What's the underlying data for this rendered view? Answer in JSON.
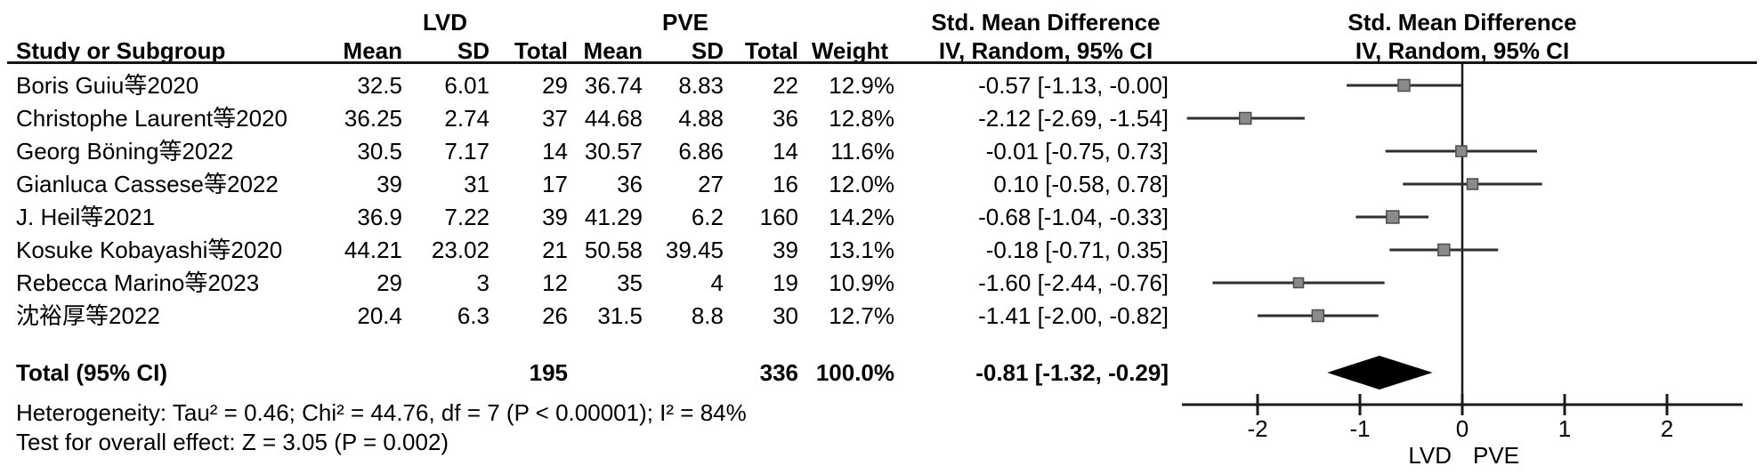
{
  "headers": {
    "group_lvd": "LVD",
    "group_pve": "PVE",
    "smd_left": "Std. Mean Difference",
    "smd_right": "Std. Mean Difference",
    "method_left": "IV, Random, 95% CI",
    "method_right": "IV, Random, 95% CI"
  },
  "columns": {
    "study": "Study or Subgroup",
    "mean": "Mean",
    "sd": "SD",
    "total": "Total",
    "weight": "Weight"
  },
  "table": {
    "rows": [
      {
        "study": "Boris Guiu等2020",
        "lvd_mean": "32.5",
        "lvd_sd": "6.01",
        "lvd_total": "29",
        "pve_mean": "36.74",
        "pve_sd": "8.83",
        "pve_total": "22",
        "weight": "12.9%",
        "ci_text": "-0.57 [-1.13, -0.00]"
      },
      {
        "study": "Christophe Laurent等2020",
        "lvd_mean": "36.25",
        "lvd_sd": "2.74",
        "lvd_total": "37",
        "pve_mean": "44.68",
        "pve_sd": "4.88",
        "pve_total": "36",
        "weight": "12.8%",
        "ci_text": "-2.12 [-2.69, -1.54]"
      },
      {
        "study": "Georg Böning等2022",
        "lvd_mean": "30.5",
        "lvd_sd": "7.17",
        "lvd_total": "14",
        "pve_mean": "30.57",
        "pve_sd": "6.86",
        "pve_total": "14",
        "weight": "11.6%",
        "ci_text": "-0.01 [-0.75, 0.73]"
      },
      {
        "study": "Gianluca Cassese等2022",
        "lvd_mean": "39",
        "lvd_sd": "31",
        "lvd_total": "17",
        "pve_mean": "36",
        "pve_sd": "27",
        "pve_total": "16",
        "weight": "12.0%",
        "ci_text": "0.10 [-0.58, 0.78]"
      },
      {
        "study": "J. Heil等2021",
        "lvd_mean": "36.9",
        "lvd_sd": "7.22",
        "lvd_total": "39",
        "pve_mean": "41.29",
        "pve_sd": "6.2",
        "pve_total": "160",
        "weight": "14.2%",
        "ci_text": "-0.68 [-1.04, -0.33]"
      },
      {
        "study": "Kosuke Kobayashi等2020",
        "lvd_mean": "44.21",
        "lvd_sd": "23.02",
        "lvd_total": "21",
        "pve_mean": "50.58",
        "pve_sd": "39.45",
        "pve_total": "39",
        "weight": "13.1%",
        "ci_text": "-0.18 [-0.71, 0.35]"
      },
      {
        "study": "Rebecca Marino等2023",
        "lvd_mean": "29",
        "lvd_sd": "3",
        "lvd_total": "12",
        "pve_mean": "35",
        "pve_sd": "4",
        "pve_total": "19",
        "weight": "10.9%",
        "ci_text": "-1.60 [-2.44, -0.76]"
      },
      {
        "study": "沈裕厚等2022",
        "lvd_mean": "20.4",
        "lvd_sd": "6.3",
        "lvd_total": "26",
        "pve_mean": "31.5",
        "pve_sd": "8.8",
        "pve_total": "30",
        "weight": "12.7%",
        "ci_text": "-1.41 [-2.00, -0.82]"
      }
    ],
    "total": {
      "label": "Total (95% CI)",
      "lvd_total": "195",
      "pve_total": "336",
      "weight": "100.0%",
      "ci_text": "-0.81 [-1.32, -0.29]"
    },
    "heterogeneity": "Heterogeneity: Tau² = 0.46; Chi² = 44.76, df = 7 (P < 0.00001); I² = 84%",
    "overall_effect": "Test for overall effect: Z = 3.05 (P = 0.002)"
  },
  "chart_data": {
    "type": "forest",
    "title": "Std. Mean Difference",
    "method": "IV, Random, 95% CI",
    "x_ticks": [
      -2,
      -1,
      0,
      1,
      2
    ],
    "xlim": [
      -2.75,
      2.75
    ],
    "favours_labels": {
      "left": "LVD",
      "right": "PVE"
    },
    "studies": [
      {
        "name": "Boris Guiu等2020",
        "estimate": -0.57,
        "ci_low": -1.13,
        "ci_high": 0.0,
        "weight_pct": 12.9
      },
      {
        "name": "Christophe Laurent等2020",
        "estimate": -2.12,
        "ci_low": -2.69,
        "ci_high": -1.54,
        "weight_pct": 12.8
      },
      {
        "name": "Georg Böning等2022",
        "estimate": -0.01,
        "ci_low": -0.75,
        "ci_high": 0.73,
        "weight_pct": 11.6
      },
      {
        "name": "Gianluca Cassese等2022",
        "estimate": 0.1,
        "ci_low": -0.58,
        "ci_high": 0.78,
        "weight_pct": 12.0
      },
      {
        "name": "J. Heil等2021",
        "estimate": -0.68,
        "ci_low": -1.04,
        "ci_high": -0.33,
        "weight_pct": 14.2
      },
      {
        "name": "Kosuke Kobayashi等2020",
        "estimate": -0.18,
        "ci_low": -0.71,
        "ci_high": 0.35,
        "weight_pct": 13.1
      },
      {
        "name": "Rebecca Marino等2023",
        "estimate": -1.6,
        "ci_low": -2.44,
        "ci_high": -0.76,
        "weight_pct": 10.9
      },
      {
        "name": "沈裕厚等2022",
        "estimate": -1.41,
        "ci_low": -2.0,
        "ci_high": -0.82,
        "weight_pct": 12.7
      }
    ],
    "pooled": {
      "label": "Total (95% CI)",
      "estimate": -0.81,
      "ci_low": -1.32,
      "ci_high": -0.29,
      "weight_pct": 100.0
    }
  },
  "colors": {
    "text": "#000000",
    "rule": "#151515",
    "ci_line": "#2f2f2f",
    "square_fill": "#8a8a8a",
    "square_border": "#4d4d4d",
    "diamond": "#000000",
    "axis": "#1a1a1a"
  }
}
